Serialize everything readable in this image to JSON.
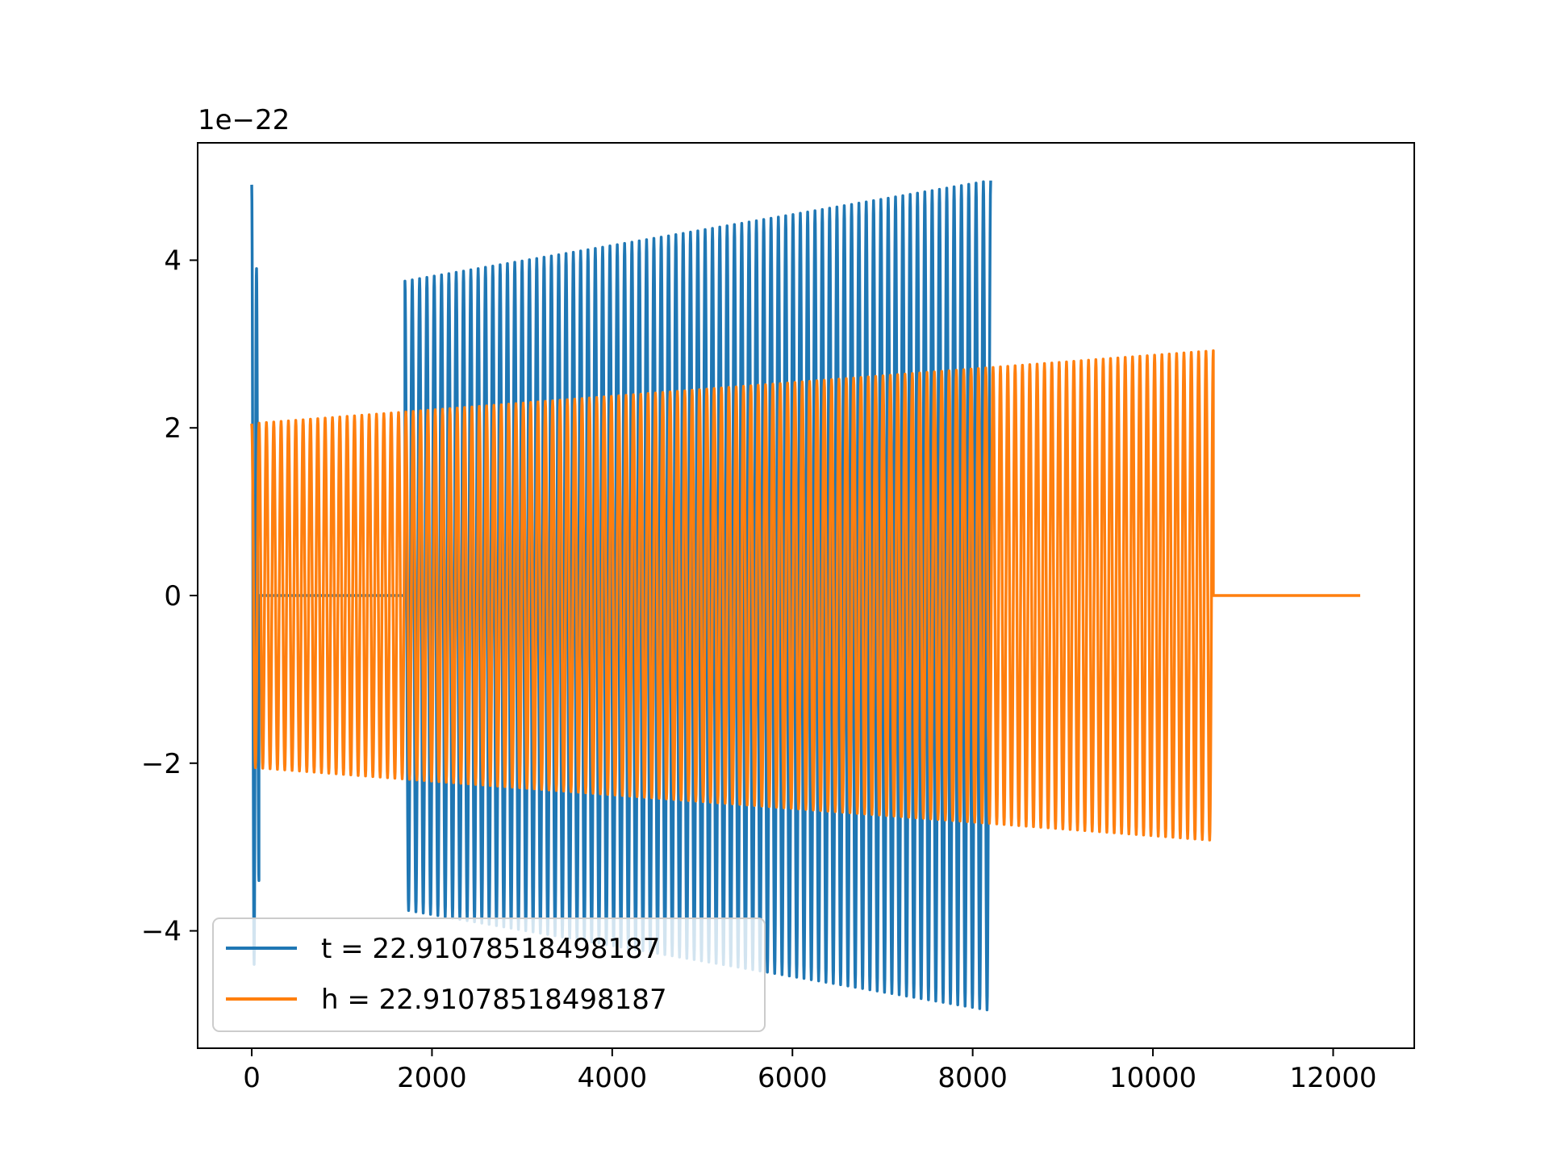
{
  "chart_data": {
    "type": "line",
    "title": "",
    "xlabel": "",
    "ylabel": "",
    "y_offset_label": "1e−22",
    "xlim": [
      -600,
      12900
    ],
    "ylim": [
      -5.4,
      5.4
    ],
    "x_ticks": [
      0,
      2000,
      4000,
      6000,
      8000,
      10000,
      12000
    ],
    "x_tick_labels": [
      "0",
      "2000",
      "4000",
      "6000",
      "8000",
      "10000",
      "12000"
    ],
    "y_ticks": [
      -4,
      -2,
      0,
      2,
      4
    ],
    "y_tick_labels": [
      "−4",
      "−2",
      "0",
      "2",
      "4"
    ],
    "grid": false,
    "legend_placement": "lower-left",
    "series": [
      {
        "name": "t = 22.91078518498187",
        "color": "#1f77b4",
        "segments": [
          {
            "x_start": 0,
            "x_end": 80,
            "amp_start": 4.9,
            "amp_end": 3.4,
            "cycles": 1.5
          },
          {
            "x_start": 80,
            "x_end": 1700,
            "amp_start": 0.0,
            "amp_end": 0.0,
            "cycles": 0
          },
          {
            "x_start": 1700,
            "x_end": 8200,
            "amp_start": 3.75,
            "amp_end": 4.95,
            "cycles": 80
          }
        ]
      },
      {
        "name": "h = 22.91078518498187",
        "color": "#ff7f0e",
        "segments": [
          {
            "x_start": 0,
            "x_end": 10670,
            "amp_start": 2.05,
            "amp_end": 2.92,
            "cycles": 131
          },
          {
            "x_start": 10670,
            "x_end": 12300,
            "amp_start": 0.0,
            "amp_end": 0.0,
            "cycles": 0
          }
        ]
      }
    ]
  }
}
